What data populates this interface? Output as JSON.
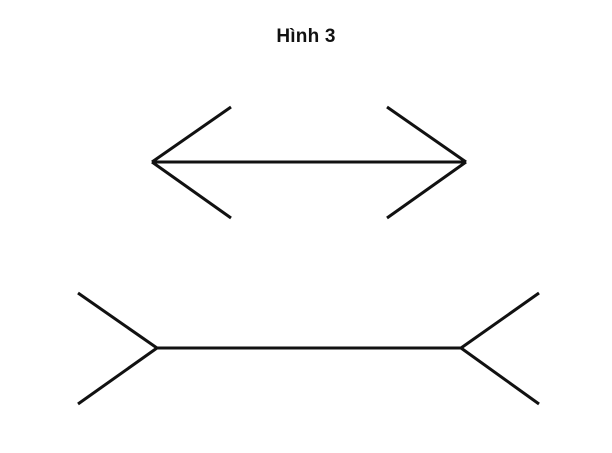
{
  "figure": {
    "title": "Hình 3"
  },
  "colors": {
    "line": "#111111",
    "background": "#ffffff"
  }
}
